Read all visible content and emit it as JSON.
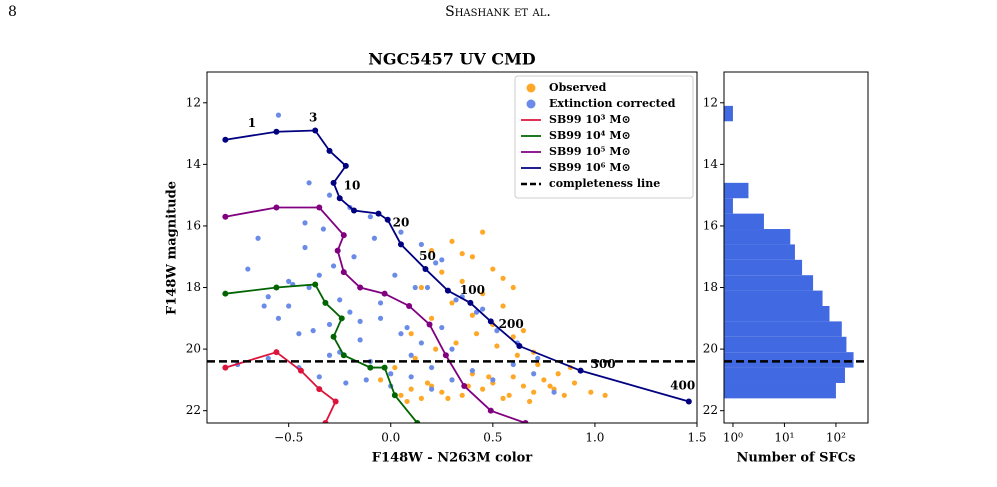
{
  "header": {
    "page_number": "8",
    "running_title": "Shashank et al."
  },
  "chart_data": [
    {
      "type": "scatter",
      "title": "NGC5457 UV CMD",
      "xlabel": "F148W - N263M color",
      "ylabel": "F148W magnitude",
      "xlim": [
        -0.9,
        1.5
      ],
      "ylim": [
        11.0,
        22.4
      ],
      "yinvert": true,
      "xticks": [
        {
          "value": -0.5,
          "label": "−0.5"
        },
        {
          "value": 0,
          "label": "0.0"
        },
        0.5,
        {
          "value": 1,
          "label": "1.0"
        },
        1.5
      ],
      "yticks": [
        12,
        14,
        16,
        18,
        20,
        22
      ],
      "legend": "upper right",
      "series": [
        {
          "name": "Observed",
          "color": "#ffa726",
          "style": "markers",
          "x": [
            0.05,
            0.1,
            0.15,
            0.2,
            0.25,
            0.3,
            0.35,
            0.4,
            0.45,
            0.5,
            0.55,
            0.6,
            0.65,
            0.7,
            0.75,
            0.8,
            0.85,
            0.9,
            0.02,
            0.12,
            0.22,
            0.32,
            0.42,
            0.52,
            0.62,
            0.72,
            0.82,
            -0.05,
            0.08,
            0.18,
            0.28,
            0.38,
            0.48,
            0.58,
            0.68,
            0.78,
            0.88,
            0.3,
            0.4,
            0.5,
            0.6,
            0.2,
            0.1,
            0.35,
            0.45,
            0.55,
            0.65,
            0.25,
            0.15,
            0.7,
            0.4,
            0.5,
            0.3,
            0.6,
            0.2,
            0.45,
            0.35,
            0.55,
            0.98,
            1.05
          ],
          "y": [
            21.5,
            21.3,
            21.6,
            21.2,
            21.4,
            21.0,
            21.5,
            20.8,
            21.3,
            21.1,
            21.6,
            20.9,
            21.2,
            21.4,
            21.0,
            21.3,
            21.5,
            21.1,
            20.6,
            20.3,
            20.0,
            19.8,
            19.5,
            19.9,
            20.2,
            20.5,
            20.8,
            21.0,
            21.7,
            21.1,
            21.6,
            21.2,
            20.9,
            21.5,
            21.7,
            21.2,
            20.6,
            18.5,
            18.9,
            19.2,
            19.6,
            19.0,
            19.5,
            17.8,
            18.2,
            18.6,
            19.4,
            17.5,
            18.0,
            20.1,
            17.0,
            17.4,
            16.5,
            18.0,
            16.8,
            16.2,
            16.9,
            17.7,
            21.4,
            21.5
          ]
        },
        {
          "name": "Extinction corrected",
          "color": "#6a8ce8",
          "style": "markers",
          "x": [
            -0.7,
            -0.6,
            -0.55,
            -0.5,
            -0.45,
            -0.4,
            -0.35,
            -0.3,
            -0.25,
            -0.2,
            -0.15,
            -0.1,
            -0.05,
            0.0,
            0.05,
            0.1,
            0.15,
            0.2,
            0.25,
            0.3,
            -0.65,
            -0.5,
            -0.42,
            -0.33,
            -0.28,
            -0.18,
            -0.08,
            0.02,
            0.12,
            0.22,
            0.32,
            0.42,
            0.52,
            0.62,
            0.72,
            -0.6,
            -0.45,
            -0.35,
            -0.22,
            -0.12,
            0.0,
            0.1,
            0.2,
            0.3,
            0.4,
            0.5,
            0.6,
            0.7,
            0.8,
            -0.55,
            -0.4,
            -0.3,
            -0.2,
            -0.1,
            0.05,
            0.15,
            0.25,
            0.35,
            0.45,
            -0.62,
            -0.38,
            -0.3,
            -0.25,
            -0.15,
            -0.05,
            0.08,
            0.18,
            -0.48,
            -0.42,
            -0.75
          ],
          "y": [
            17.4,
            18.3,
            19.0,
            18.6,
            19.5,
            18.0,
            17.6,
            19.2,
            20.1,
            18.8,
            19.7,
            20.4,
            19.0,
            20.8,
            19.5,
            20.2,
            19.8,
            20.6,
            19.3,
            20.0,
            16.4,
            17.8,
            16.7,
            16.1,
            17.3,
            17.0,
            16.4,
            17.6,
            18.0,
            17.2,
            18.4,
            18.8,
            19.4,
            19.8,
            20.3,
            20.3,
            20.6,
            20.9,
            21.1,
            21.0,
            21.2,
            20.9,
            21.3,
            21.0,
            20.7,
            21.0,
            20.5,
            20.8,
            21.4,
            12.4,
            14.6,
            15.0,
            15.4,
            15.7,
            16.2,
            16.6,
            17.1,
            18.3,
            18.7,
            18.6,
            19.4,
            20.2,
            18.4,
            19.1,
            18.5,
            19.3,
            18.0,
            17.9,
            15.9,
            20.5
          ]
        },
        {
          "name": "SB99 10³ M⊙",
          "color": "#dc143c",
          "style": "line",
          "x": [
            -0.81,
            -0.56,
            -0.44,
            -0.35,
            -0.27,
            -0.32
          ],
          "y": [
            20.6,
            20.1,
            20.7,
            21.3,
            21.7,
            22.4
          ]
        },
        {
          "name": "SB99 10⁴ M⊙",
          "color": "#006400",
          "style": "line",
          "x": [
            -0.81,
            -0.56,
            -0.37,
            -0.32,
            -0.24,
            -0.28,
            -0.23,
            -0.1,
            -0.03,
            0.02,
            0.13
          ],
          "y": [
            18.2,
            18.0,
            17.9,
            18.5,
            19.0,
            19.6,
            20.2,
            20.6,
            20.6,
            21.5,
            22.4
          ]
        },
        {
          "name": "SB99 10⁵ M⊙",
          "color": "#800080",
          "style": "line",
          "x": [
            -0.81,
            -0.56,
            -0.35,
            -0.23,
            -0.26,
            -0.23,
            -0.15,
            -0.03,
            0.09,
            0.19,
            0.27,
            0.36,
            0.49,
            0.66
          ],
          "y": [
            15.7,
            15.4,
            15.4,
            16.3,
            16.8,
            17.5,
            18.0,
            18.2,
            18.6,
            19.2,
            20.2,
            21.2,
            22.0,
            22.4
          ]
        },
        {
          "name": "SB99 10⁶ M⊙",
          "color": "#000080",
          "style": "line",
          "x": [
            -0.81,
            -0.56,
            -0.37,
            -0.3,
            -0.22,
            -0.28,
            -0.25,
            -0.18,
            -0.06,
            -0.015,
            0.05,
            0.17,
            0.28,
            0.39,
            0.49,
            0.63,
            0.93,
            1.46
          ],
          "y": [
            13.2,
            12.94,
            12.9,
            13.56,
            14.05,
            14.6,
            15.1,
            15.5,
            15.6,
            15.8,
            16.6,
            17.4,
            18.1,
            18.5,
            19.1,
            19.9,
            20.7,
            21.7
          ]
        }
      ],
      "hline": {
        "name": "completeness line",
        "value": 20.4,
        "color": "#000000"
      },
      "annotations": [
        {
          "text": "1",
          "x": -0.68,
          "y": 12.68
        },
        {
          "text": "3",
          "x": -0.38,
          "y": 12.5
        },
        {
          "text": "10",
          "x": -0.19,
          "y": 14.7
        },
        {
          "text": "20",
          "x": 0.05,
          "y": 15.9
        },
        {
          "text": "50",
          "x": 0.18,
          "y": 17.0
        },
        {
          "text": "100",
          "x": 0.4,
          "y": 18.1
        },
        {
          "text": "200",
          "x": 0.59,
          "y": 19.2
        },
        {
          "text": "300",
          "x": 1.04,
          "y": 20.5
        },
        {
          "text": "400",
          "x": 1.43,
          "y": 21.2
        }
      ]
    },
    {
      "type": "hist",
      "orientation": "horizontal",
      "xlabel": "Number of SFCs",
      "xscale": "log",
      "xlim": [
        0.67,
        420
      ],
      "xticks": [
        {
          "value": 1,
          "label": "10⁰"
        },
        {
          "value": 10,
          "label": "10¹"
        },
        {
          "value": 100,
          "label": "10²"
        }
      ],
      "ylim": [
        11.0,
        22.4
      ],
      "yinvert": true,
      "yticks": [
        12,
        14,
        16,
        18,
        20,
        22
      ],
      "color": "#4169e1",
      "bins": [
        12.1,
        12.6,
        13.1,
        13.6,
        14.1,
        14.6,
        15.1,
        15.6,
        16.1,
        16.6,
        17.1,
        17.6,
        18.1,
        18.6,
        19.1,
        19.6,
        20.1,
        20.6,
        21.1,
        21.6
      ],
      "counts": [
        1,
        0,
        0,
        0,
        0,
        2,
        1,
        4,
        13,
        16,
        22,
        36,
        55,
        75,
        130,
        160,
        220,
        150,
        100
      ],
      "hline": {
        "value": 20.4,
        "color": "#000000"
      }
    }
  ]
}
